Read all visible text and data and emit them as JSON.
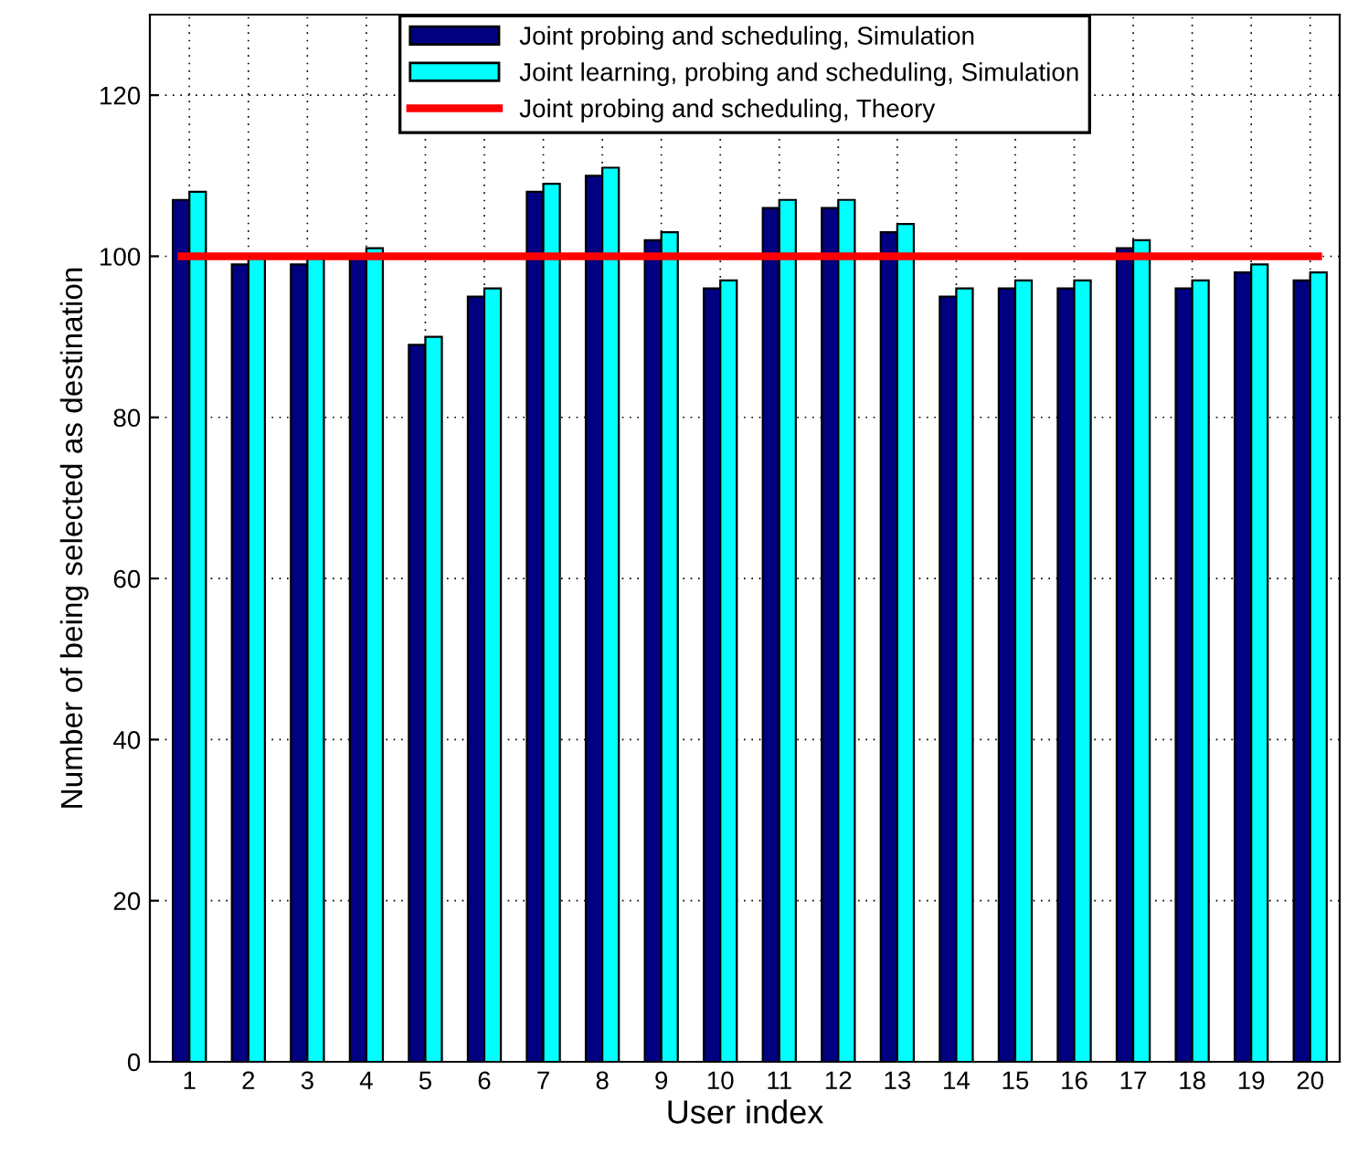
{
  "chart_data": {
    "type": "bar",
    "xlabel": "User index",
    "ylabel": "Number of being selected as destination",
    "categories": [
      "1",
      "2",
      "3",
      "4",
      "5",
      "6",
      "7",
      "8",
      "9",
      "10",
      "11",
      "12",
      "13",
      "14",
      "15",
      "16",
      "17",
      "18",
      "19",
      "20"
    ],
    "series": [
      {
        "name": "Joint probing and scheduling, Simulation",
        "color": "#000080",
        "values": [
          107,
          99,
          99,
          100,
          89,
          95,
          108,
          110,
          102,
          96,
          106,
          106,
          103,
          95,
          96,
          96,
          101,
          96,
          98,
          97
        ]
      },
      {
        "name": "Joint learning, probing and scheduling, Simulation",
        "color": "#00ffff",
        "values": [
          108,
          100,
          100,
          101,
          90,
          96,
          109,
          111,
          103,
          97,
          107,
          107,
          104,
          96,
          97,
          97,
          102,
          97,
          99,
          98
        ]
      }
    ],
    "ref_lines": [
      {
        "axis": "y",
        "value": 100,
        "label": "Joint probing and scheduling, Theory",
        "color": "#ff0000",
        "line_style": "solid"
      }
    ],
    "ylim": [
      0,
      130
    ],
    "yticks": [
      0,
      20,
      40,
      60,
      80,
      100,
      120
    ],
    "grid": true,
    "legend": "top"
  }
}
